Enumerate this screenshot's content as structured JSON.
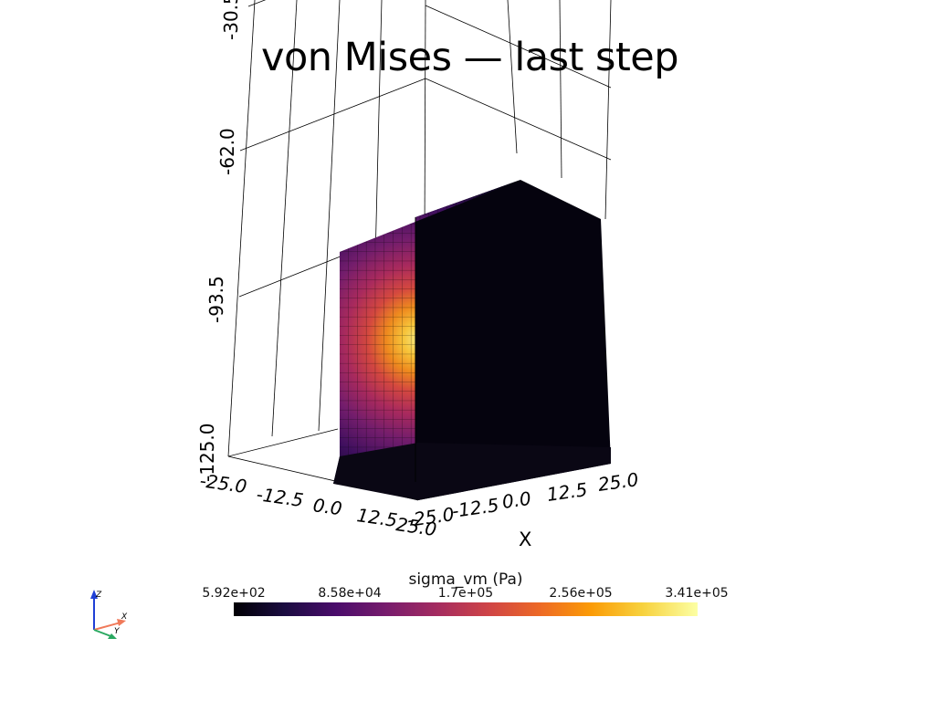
{
  "title": "von Mises — last step",
  "axes": {
    "x": {
      "title": "X",
      "ticks": [
        "-25.0",
        "-12.5",
        "0.0",
        "12.5",
        "25.0"
      ]
    },
    "y": {
      "ticks": [
        "-25.0",
        "-12.5",
        "0.0",
        "12.5",
        "25.0"
      ]
    },
    "z": {
      "ticks": [
        "-30.5",
        "-62.0",
        "-93.5",
        "-125.0"
      ]
    }
  },
  "scalar_bar": {
    "title": "sigma_vm (Pa)",
    "ticks": [
      "5.92e+02",
      "8.58e+04",
      "1.7e+05",
      "2.56e+05",
      "3.41e+05"
    ],
    "colormap": [
      "#000004",
      "#1b0c41",
      "#4a0c6b",
      "#781c6d",
      "#a52c60",
      "#cf4446",
      "#ed6925",
      "#fb9b06",
      "#f7d13d",
      "#fcffa4"
    ]
  },
  "orientation_widget": {
    "x_label": "X",
    "y_label": "Y",
    "z_label": "Z"
  }
}
